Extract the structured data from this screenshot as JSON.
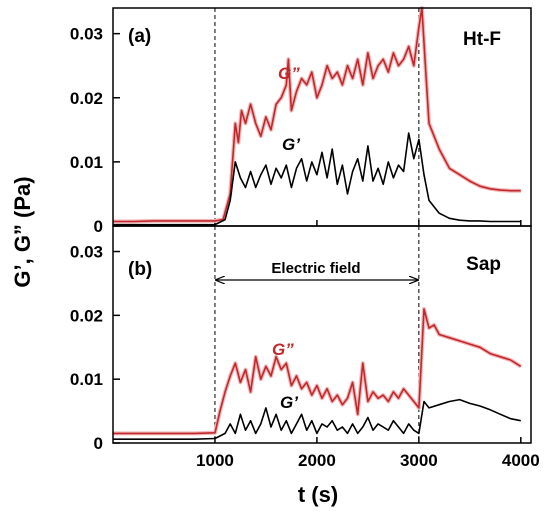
{
  "chart_data": [
    {
      "type": "line",
      "panel_tag": "(a)",
      "sample": "Ht-F",
      "xlabel": "",
      "ylabel": "",
      "xlim": [
        0,
        4100
      ],
      "ylim": [
        0,
        0.034
      ],
      "yticks": [
        "0",
        "0.01",
        "0.02",
        "0.03"
      ],
      "xticks": [],
      "marker_lines": [
        1000,
        3000
      ],
      "series": [
        {
          "name": "G”",
          "color": "#c0282b",
          "x": [
            0,
            200,
            400,
            600,
            800,
            1000,
            1080,
            1150,
            1200,
            1230,
            1260,
            1300,
            1350,
            1400,
            1450,
            1500,
            1550,
            1600,
            1650,
            1700,
            1720,
            1750,
            1800,
            1850,
            1900,
            1950,
            2000,
            2050,
            2100,
            2150,
            2200,
            2250,
            2300,
            2350,
            2400,
            2450,
            2500,
            2550,
            2600,
            2650,
            2700,
            2750,
            2800,
            2850,
            2900,
            2950,
            3000,
            3030,
            3060,
            3100,
            3150,
            3200,
            3300,
            3400,
            3500,
            3600,
            3700,
            3800,
            3900,
            4000
          ],
          "values": [
            0.0007,
            0.0007,
            0.0008,
            0.0008,
            0.0008,
            0.0008,
            0.001,
            0.005,
            0.016,
            0.013,
            0.018,
            0.016,
            0.019,
            0.016,
            0.014,
            0.017,
            0.015,
            0.019,
            0.02,
            0.022,
            0.026,
            0.018,
            0.021,
            0.023,
            0.022,
            0.024,
            0.02,
            0.022,
            0.025,
            0.023,
            0.024,
            0.022,
            0.025,
            0.023,
            0.026,
            0.022,
            0.027,
            0.023,
            0.025,
            0.026,
            0.024,
            0.027,
            0.025,
            0.026,
            0.028,
            0.025,
            0.031,
            0.034,
            0.026,
            0.016,
            0.014,
            0.012,
            0.009,
            0.008,
            0.007,
            0.0062,
            0.0058,
            0.0056,
            0.0055,
            0.0055
          ]
        },
        {
          "name": "G’",
          "color": "#000000",
          "x": [
            0,
            200,
            400,
            600,
            800,
            1000,
            1100,
            1150,
            1200,
            1250,
            1300,
            1350,
            1400,
            1450,
            1500,
            1550,
            1600,
            1650,
            1700,
            1750,
            1800,
            1850,
            1900,
            1950,
            2000,
            2050,
            2100,
            2150,
            2200,
            2250,
            2300,
            2350,
            2400,
            2450,
            2500,
            2550,
            2600,
            2650,
            2700,
            2750,
            2800,
            2850,
            2900,
            2950,
            3000,
            3050,
            3100,
            3200,
            3300,
            3400,
            3500,
            3600,
            3700,
            3800,
            3900,
            4000
          ],
          "values": [
            0.0002,
            0.0002,
            0.0002,
            0.0002,
            0.0002,
            0.0002,
            0.001,
            0.004,
            0.01,
            0.0075,
            0.006,
            0.0085,
            0.006,
            0.008,
            0.0095,
            0.0065,
            0.009,
            0.0075,
            0.0095,
            0.006,
            0.009,
            0.0105,
            0.007,
            0.01,
            0.008,
            0.0115,
            0.0075,
            0.012,
            0.0065,
            0.0095,
            0.005,
            0.0085,
            0.0105,
            0.007,
            0.0125,
            0.007,
            0.009,
            0.0065,
            0.01,
            0.0075,
            0.0095,
            0.0085,
            0.0145,
            0.0105,
            0.0135,
            0.008,
            0.004,
            0.002,
            0.0012,
            0.0009,
            0.0008,
            0.0008,
            0.0007,
            0.0007,
            0.0007,
            0.0007
          ]
        }
      ]
    },
    {
      "type": "line",
      "panel_tag": "(b)",
      "sample": "Sap",
      "annotation": "Electric field",
      "annotation_range": [
        1000,
        3000
      ],
      "xlabel": "t  (s)",
      "ylabel": "G’, G”  (Pa)",
      "xlim": [
        0,
        4100
      ],
      "ylim": [
        0,
        0.034
      ],
      "yticks": [
        "0",
        "0.01",
        "0.02",
        "0.03"
      ],
      "xticks": [
        "1000",
        "2000",
        "3000",
        "4000"
      ],
      "marker_lines": [
        1000,
        3000
      ],
      "series": [
        {
          "name": "G”",
          "color": "#c0282b",
          "x": [
            0,
            200,
            400,
            600,
            800,
            1000,
            1050,
            1100,
            1150,
            1200,
            1250,
            1300,
            1350,
            1400,
            1450,
            1500,
            1550,
            1600,
            1650,
            1700,
            1750,
            1800,
            1850,
            1900,
            1950,
            2000,
            2050,
            2100,
            2150,
            2200,
            2250,
            2300,
            2350,
            2400,
            2450,
            2500,
            2550,
            2600,
            2650,
            2700,
            2750,
            2800,
            2850,
            2900,
            2950,
            3000,
            3050,
            3100,
            3150,
            3200,
            3300,
            3400,
            3500,
            3600,
            3700,
            3800,
            3900,
            4000
          ],
          "values": [
            0.0015,
            0.0015,
            0.0015,
            0.0015,
            0.0015,
            0.0016,
            0.005,
            0.008,
            0.0105,
            0.0125,
            0.0095,
            0.0115,
            0.008,
            0.0135,
            0.01,
            0.012,
            0.0105,
            0.0135,
            0.0115,
            0.0125,
            0.009,
            0.0105,
            0.0085,
            0.0095,
            0.0075,
            0.009,
            0.007,
            0.0085,
            0.0065,
            0.0075,
            0.006,
            0.007,
            0.0095,
            0.0045,
            0.0125,
            0.0065,
            0.008,
            0.007,
            0.0075,
            0.0065,
            0.008,
            0.007,
            0.0085,
            0.0075,
            0.0065,
            0.0055,
            0.021,
            0.018,
            0.0185,
            0.017,
            0.0165,
            0.016,
            0.0155,
            0.015,
            0.014,
            0.0135,
            0.013,
            0.012
          ]
        },
        {
          "name": "G’",
          "color": "#000000",
          "x": [
            0,
            200,
            400,
            600,
            800,
            1000,
            1100,
            1150,
            1200,
            1250,
            1300,
            1350,
            1400,
            1450,
            1500,
            1550,
            1600,
            1650,
            1700,
            1750,
            1800,
            1850,
            1900,
            1950,
            2000,
            2050,
            2100,
            2150,
            2200,
            2250,
            2300,
            2350,
            2400,
            2450,
            2500,
            2550,
            2600,
            2650,
            2700,
            2750,
            2800,
            2850,
            2900,
            2950,
            3000,
            3050,
            3100,
            3200,
            3300,
            3400,
            3500,
            3600,
            3700,
            3800,
            3900,
            4000
          ],
          "values": [
            0.0006,
            0.0006,
            0.0006,
            0.0006,
            0.0006,
            0.0007,
            0.0015,
            0.003,
            0.0015,
            0.0045,
            0.002,
            0.0035,
            0.0015,
            0.003,
            0.0055,
            0.0025,
            0.0045,
            0.002,
            0.0035,
            0.0015,
            0.003,
            0.0045,
            0.002,
            0.0035,
            0.0015,
            0.003,
            0.0025,
            0.0035,
            0.002,
            0.0025,
            0.0015,
            0.003,
            0.0015,
            0.0025,
            0.004,
            0.002,
            0.003,
            0.0025,
            0.002,
            0.0035,
            0.0025,
            0.0015,
            0.003,
            0.002,
            0.0015,
            0.0065,
            0.0055,
            0.006,
            0.0065,
            0.0068,
            0.0062,
            0.0058,
            0.0052,
            0.0045,
            0.0038,
            0.0035
          ]
        }
      ]
    }
  ]
}
